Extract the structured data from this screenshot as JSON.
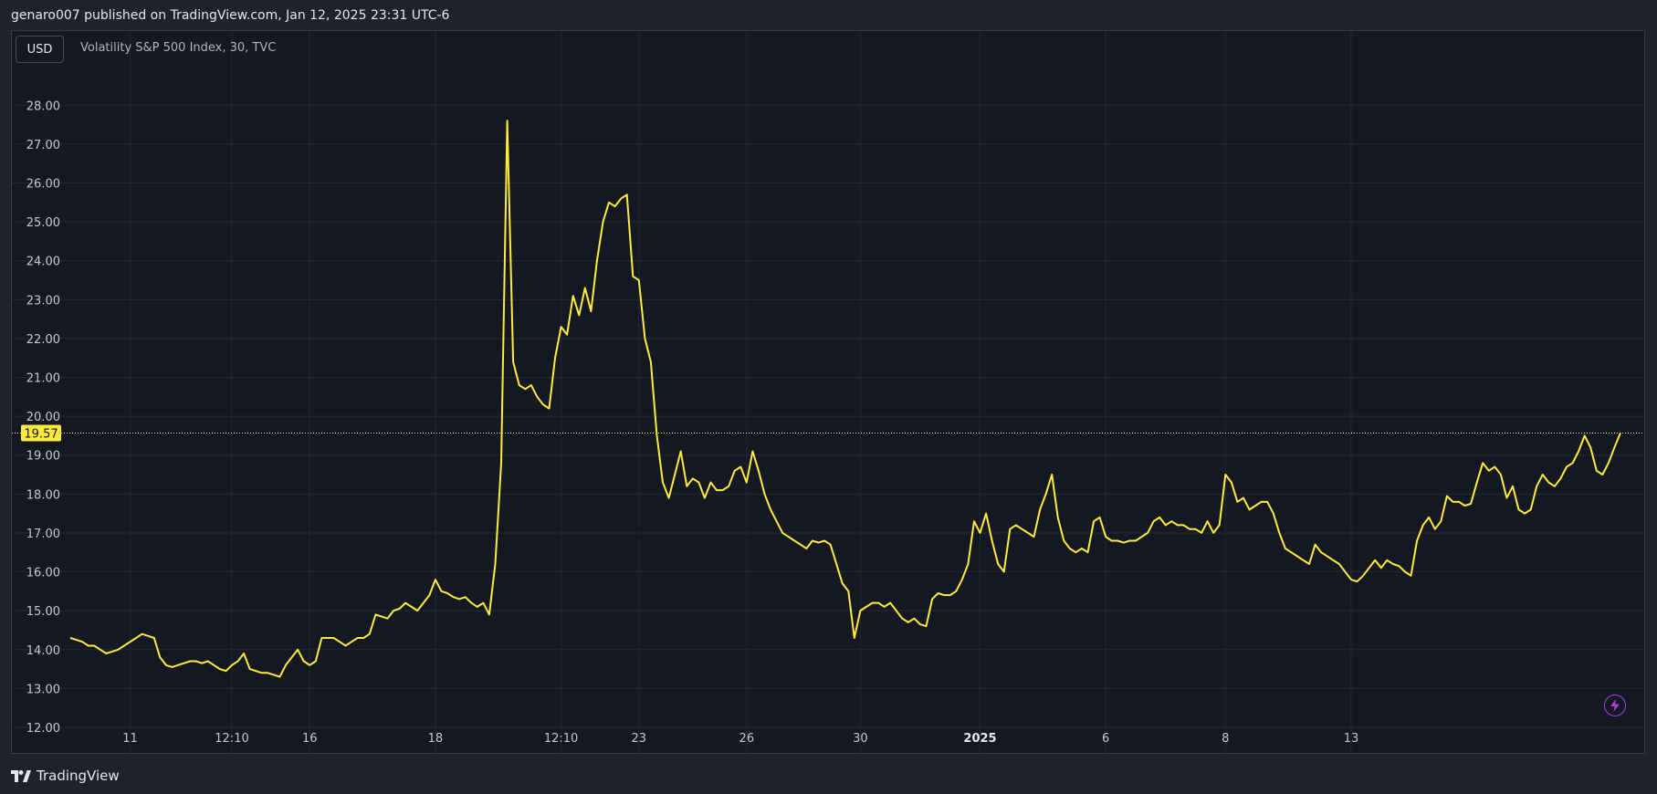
{
  "header": {
    "published_text": "genaro007 published on TradingView.com, Jan 12, 2025 23:31 UTC-6"
  },
  "toolbar": {
    "currency_label": "USD",
    "lightning_icon": "lightning-icon"
  },
  "legend": {
    "series_text": "Volatility S&P 500 Index, 30, TVC"
  },
  "price_badge": {
    "label": "19.57",
    "color": "#ffeb3b"
  },
  "footer": {
    "brand": "TradingView",
    "logo_icon": "tradingview-logo-icon"
  },
  "colors": {
    "line": "#ffeb3b",
    "background": "#141823",
    "grid": "#232735",
    "badge_text": "#141823"
  },
  "chart_data": {
    "type": "line",
    "title": "",
    "xlabel": "",
    "ylabel": "",
    "ylim": [
      11.6,
      28.5
    ],
    "y_ticks": [
      "28.00",
      "27.00",
      "26.00",
      "25.00",
      "24.00",
      "23.00",
      "22.00",
      "21.00",
      "20.00",
      "19.00",
      "18.00",
      "17.00",
      "16.00",
      "15.00",
      "14.00",
      "13.00",
      "12.00"
    ],
    "x_ticks": [
      {
        "label": "11",
        "i": 10,
        "bold": false
      },
      {
        "label": "12:10",
        "i": 27,
        "bold": false
      },
      {
        "label": "16",
        "i": 40,
        "bold": false
      },
      {
        "label": "18",
        "i": 61,
        "bold": false
      },
      {
        "label": "12:10",
        "i": 82,
        "bold": false
      },
      {
        "label": "23",
        "i": 95,
        "bold": false
      },
      {
        "label": "26",
        "i": 113,
        "bold": false
      },
      {
        "label": "30",
        "i": 132,
        "bold": false
      },
      {
        "label": "2025",
        "i": 152,
        "bold": true
      },
      {
        "label": "6",
        "i": 173,
        "bold": false
      },
      {
        "label": "8",
        "i": 193,
        "bold": false
      },
      {
        "label": "13",
        "i": 214,
        "bold": false
      }
    ],
    "last_value": 19.57,
    "grid": true,
    "series": [
      {
        "values": [
          14.3,
          14.25,
          14.2,
          14.1,
          14.1,
          14.0,
          13.9,
          13.95,
          14.0,
          14.1,
          14.2,
          14.3,
          14.4,
          14.35,
          14.3,
          13.8,
          13.6,
          13.55,
          13.6,
          13.65,
          13.7,
          13.7,
          13.65,
          13.7,
          13.6,
          13.5,
          13.45,
          13.6,
          13.7,
          13.9,
          13.5,
          13.45,
          13.4,
          13.4,
          13.35,
          13.3,
          13.6,
          13.8,
          14.0,
          13.7,
          13.6,
          13.7,
          14.3,
          14.3,
          14.3,
          14.2,
          14.1,
          14.2,
          14.3,
          14.3,
          14.4,
          14.9,
          14.85,
          14.8,
          15.0,
          15.05,
          15.2,
          15.1,
          15.0,
          15.2,
          15.4,
          15.8,
          15.5,
          15.45,
          15.35,
          15.3,
          15.35,
          15.2,
          15.1,
          15.2,
          14.9,
          16.2,
          18.8,
          27.6,
          21.4,
          20.8,
          20.7,
          20.8,
          20.5,
          20.3,
          20.2,
          21.5,
          22.3,
          22.1,
          23.1,
          22.6,
          23.3,
          22.7,
          24.0,
          25.0,
          25.5,
          25.4,
          25.6,
          25.7,
          23.6,
          23.5,
          22.0,
          21.4,
          19.5,
          18.3,
          17.9,
          18.5,
          19.1,
          18.2,
          18.4,
          18.3,
          17.9,
          18.3,
          18.1,
          18.1,
          18.2,
          18.6,
          18.7,
          18.3,
          19.1,
          18.6,
          18.0,
          17.6,
          17.3,
          17.0,
          16.9,
          16.8,
          16.7,
          16.6,
          16.8,
          16.75,
          16.8,
          16.7,
          16.2,
          15.7,
          15.5,
          14.3,
          15.0,
          15.1,
          15.2,
          15.2,
          15.1,
          15.2,
          15.0,
          14.8,
          14.7,
          14.8,
          14.65,
          14.6,
          15.3,
          15.45,
          15.4,
          15.4,
          15.5,
          15.8,
          16.2,
          17.3,
          17.0,
          17.5,
          16.8,
          16.2,
          16.0,
          17.1,
          17.2,
          17.1,
          17.0,
          16.9,
          17.6,
          18.0,
          18.5,
          17.4,
          16.8,
          16.6,
          16.5,
          16.6,
          16.5,
          17.3,
          17.4,
          16.9,
          16.8,
          16.8,
          16.75,
          16.8,
          16.8,
          16.9,
          17.0,
          17.3,
          17.4,
          17.2,
          17.3,
          17.2,
          17.2,
          17.1,
          17.1,
          17.0,
          17.3,
          17.0,
          17.2,
          18.5,
          18.3,
          17.8,
          17.9,
          17.6,
          17.7,
          17.8,
          17.8,
          17.5,
          17.0,
          16.6,
          16.5,
          16.4,
          16.3,
          16.2,
          16.7,
          16.5,
          16.4,
          16.3,
          16.2,
          16.0,
          15.8,
          15.75,
          15.9,
          16.1,
          16.3,
          16.1,
          16.3,
          16.2,
          16.15,
          16.0,
          15.9,
          16.8,
          17.2,
          17.4,
          17.1,
          17.3,
          17.95,
          17.8,
          17.8,
          17.7,
          17.75,
          18.3,
          18.8,
          18.6,
          18.7,
          18.5,
          17.9,
          18.2,
          17.6,
          17.5,
          17.6,
          18.2,
          18.5,
          18.3,
          18.2,
          18.4,
          18.7,
          18.8,
          19.1,
          19.5,
          19.2,
          18.6,
          18.5,
          18.8,
          19.2,
          19.57
        ]
      }
    ]
  }
}
